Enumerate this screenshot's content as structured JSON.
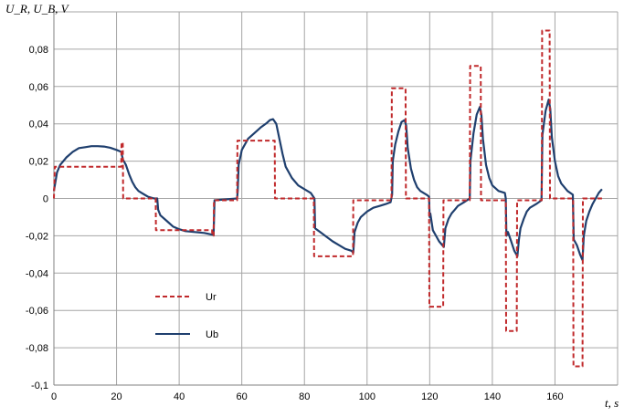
{
  "chart_data": {
    "type": "line",
    "ylabel": "U_R, U_B, V",
    "xlabel": "t, s",
    "xlim": [
      0,
      180
    ],
    "ylim": [
      -0.1,
      0.1
    ],
    "x_ticks": [
      "0",
      "20",
      "40",
      "60",
      "80",
      "100",
      "120",
      "140",
      "160"
    ],
    "y_ticks": [
      "0,08",
      "0,06",
      "0,04",
      "0,02",
      "0",
      "-0,02",
      "-0,04",
      "-0,06",
      "-0,08",
      "-0,1"
    ],
    "grid": true,
    "legend_position": "bottom-left",
    "series": [
      {
        "name": "Ur",
        "color": "#c0292b",
        "style": "dashed",
        "points": [
          [
            0,
            0
          ],
          [
            0.3,
            0.017
          ],
          [
            21.5,
            0.017
          ],
          [
            21.6,
            0.03
          ],
          [
            22,
            0.03
          ],
          [
            22.1,
            0.0
          ],
          [
            32.5,
            0.0
          ],
          [
            32.6,
            -0.017
          ],
          [
            50.5,
            -0.017
          ],
          [
            50.6,
            -0.02
          ],
          [
            51,
            -0.02
          ],
          [
            51.1,
            -0.001
          ],
          [
            58.5,
            -0.001
          ],
          [
            58.6,
            0.031
          ],
          [
            70.5,
            0.031
          ],
          [
            70.6,
            0.0
          ],
          [
            83,
            0.0
          ],
          [
            83.1,
            -0.031
          ],
          [
            95.5,
            -0.031
          ],
          [
            95.6,
            -0.001
          ],
          [
            107.8,
            -0.001
          ],
          [
            107.9,
            0.059
          ],
          [
            112.3,
            0.059
          ],
          [
            112.4,
            0.0
          ],
          [
            119.8,
            0.0
          ],
          [
            119.9,
            -0.058
          ],
          [
            124.3,
            -0.058
          ],
          [
            124.4,
            -0.001
          ],
          [
            132.8,
            -0.001
          ],
          [
            132.9,
            0.071
          ],
          [
            136.3,
            0.071
          ],
          [
            136.4,
            -0.001
          ],
          [
            144.3,
            -0.001
          ],
          [
            144.4,
            -0.071
          ],
          [
            147.8,
            -0.071
          ],
          [
            147.9,
            -0.001
          ],
          [
            155.8,
            -0.001
          ],
          [
            155.9,
            0.09
          ],
          [
            158.3,
            0.09
          ],
          [
            158.4,
            0.0
          ],
          [
            165.8,
            0.0
          ],
          [
            165.9,
            -0.09
          ],
          [
            168.8,
            -0.09
          ],
          [
            168.9,
            0.0
          ],
          [
            175,
            0.0
          ]
        ]
      },
      {
        "name": "Ub",
        "color": "#1f3f6e",
        "style": "solid",
        "points": [
          [
            0,
            0.004
          ],
          [
            1,
            0.014
          ],
          [
            2,
            0.018
          ],
          [
            4,
            0.022
          ],
          [
            6,
            0.025
          ],
          [
            8,
            0.027
          ],
          [
            10,
            0.0275
          ],
          [
            12,
            0.028
          ],
          [
            14,
            0.028
          ],
          [
            16,
            0.0278
          ],
          [
            18,
            0.0272
          ],
          [
            20,
            0.026
          ],
          [
            21.5,
            0.025
          ],
          [
            22,
            0.021
          ],
          [
            23,
            0.018
          ],
          [
            24,
            0.013
          ],
          [
            25,
            0.009
          ],
          [
            26,
            0.006
          ],
          [
            27,
            0.004
          ],
          [
            28,
            0.003
          ],
          [
            30,
            0.001
          ],
          [
            32,
            0.0
          ],
          [
            33,
            0.0
          ],
          [
            33.3,
            -0.006
          ],
          [
            34,
            -0.009
          ],
          [
            36,
            -0.012
          ],
          [
            38,
            -0.015
          ],
          [
            40,
            -0.0165
          ],
          [
            42,
            -0.0175
          ],
          [
            45,
            -0.018
          ],
          [
            48,
            -0.0185
          ],
          [
            51,
            -0.0195
          ],
          [
            51.3,
            -0.001
          ],
          [
            58.5,
            0.0
          ],
          [
            58.7,
            0.004
          ],
          [
            59,
            0.018
          ],
          [
            60,
            0.026
          ],
          [
            62,
            0.032
          ],
          [
            64,
            0.035
          ],
          [
            66,
            0.038
          ],
          [
            68,
            0.0405
          ],
          [
            69,
            0.042
          ],
          [
            70,
            0.0425
          ],
          [
            71,
            0.04
          ],
          [
            72,
            0.032
          ],
          [
            73,
            0.024
          ],
          [
            74,
            0.017
          ],
          [
            76,
            0.011
          ],
          [
            78,
            0.007
          ],
          [
            80,
            0.005
          ],
          [
            82,
            0.003
          ],
          [
            83.2,
            0.0
          ],
          [
            83.4,
            -0.016
          ],
          [
            85,
            -0.018
          ],
          [
            87,
            -0.0205
          ],
          [
            89,
            -0.023
          ],
          [
            91,
            -0.025
          ],
          [
            93,
            -0.027
          ],
          [
            95,
            -0.028
          ],
          [
            95.6,
            -0.029
          ],
          [
            96,
            -0.018
          ],
          [
            97,
            -0.013
          ],
          [
            98,
            -0.01
          ],
          [
            100,
            -0.007
          ],
          [
            102,
            -0.005
          ],
          [
            104,
            -0.004
          ],
          [
            106,
            -0.003
          ],
          [
            107.5,
            -0.002
          ],
          [
            108,
            0.002
          ],
          [
            108.2,
            0.02
          ],
          [
            109,
            0.029
          ],
          [
            110,
            0.036
          ],
          [
            111,
            0.041
          ],
          [
            112,
            0.042
          ],
          [
            112.5,
            0.039
          ],
          [
            113,
            0.027
          ],
          [
            114,
            0.016
          ],
          [
            115,
            0.01
          ],
          [
            116,
            0.006
          ],
          [
            117,
            0.004
          ],
          [
            119,
            0.002
          ],
          [
            119.8,
            0.001
          ],
          [
            120,
            -0.01
          ],
          [
            120.2,
            -0.008
          ],
          [
            121,
            -0.017
          ],
          [
            122,
            -0.02
          ],
          [
            123,
            -0.023
          ],
          [
            124,
            -0.025
          ],
          [
            124.5,
            -0.026
          ],
          [
            125,
            -0.016
          ],
          [
            126,
            -0.011
          ],
          [
            127,
            -0.008
          ],
          [
            128,
            -0.006
          ],
          [
            129,
            -0.004
          ],
          [
            131,
            -0.002
          ],
          [
            132.8,
            0.0
          ],
          [
            133,
            0.02
          ],
          [
            134,
            0.035
          ],
          [
            135,
            0.045
          ],
          [
            136,
            0.049
          ],
          [
            136.5,
            0.045
          ],
          [
            137,
            0.032
          ],
          [
            138,
            0.018
          ],
          [
            139,
            0.011
          ],
          [
            140,
            0.007
          ],
          [
            142,
            0.004
          ],
          [
            144,
            0.003
          ],
          [
            144.3,
            0.0
          ],
          [
            144.5,
            -0.02
          ],
          [
            145,
            -0.018
          ],
          [
            146,
            -0.023
          ],
          [
            147,
            -0.028
          ],
          [
            148,
            -0.031
          ],
          [
            148.5,
            -0.022
          ],
          [
            149,
            -0.016
          ],
          [
            150,
            -0.011
          ],
          [
            151,
            -0.007
          ],
          [
            152,
            -0.005
          ],
          [
            154,
            -0.003
          ],
          [
            155.7,
            -0.001
          ],
          [
            156,
            0.034
          ],
          [
            157,
            0.047
          ],
          [
            158,
            0.053
          ],
          [
            158.5,
            0.048
          ],
          [
            159,
            0.033
          ],
          [
            160,
            0.02
          ],
          [
            161,
            0.012
          ],
          [
            162,
            0.008
          ],
          [
            164,
            0.004
          ],
          [
            165.7,
            0.002
          ],
          [
            166,
            -0.022
          ],
          [
            167,
            -0.025
          ],
          [
            168,
            -0.03
          ],
          [
            168.8,
            -0.033
          ],
          [
            169.2,
            -0.02
          ],
          [
            170,
            -0.012
          ],
          [
            171,
            -0.007
          ],
          [
            172,
            -0.003
          ],
          [
            173,
            0.0
          ],
          [
            174,
            0.003
          ],
          [
            175,
            0.005
          ]
        ]
      }
    ]
  }
}
